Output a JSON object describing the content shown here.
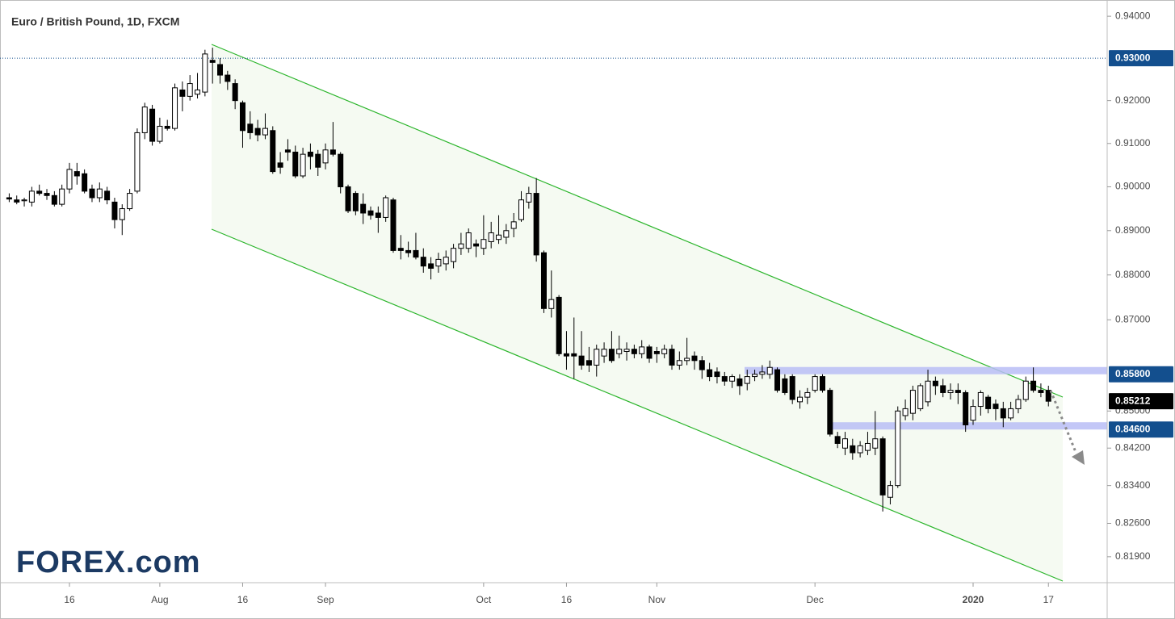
{
  "chart_data": {
    "type": "candlestick",
    "title": "Euro / British Pound, 1D, FXCM",
    "logo": "FOREX.com",
    "log": true,
    "up_color": "#ffffff",
    "down_color": "#000000",
    "categories": [
      null,
      null,
      null,
      null,
      null,
      null,
      null,
      null,
      "16",
      null,
      null,
      null,
      null,
      null,
      null,
      null,
      null,
      null,
      null,
      null,
      "Aug",
      null,
      null,
      null,
      null,
      null,
      null,
      null,
      null,
      null,
      null,
      "16",
      null,
      null,
      null,
      null,
      null,
      null,
      null,
      null,
      null,
      null,
      "Sep",
      null,
      null,
      null,
      null,
      null,
      null,
      null,
      null,
      null,
      null,
      null,
      null,
      null,
      null,
      null,
      null,
      null,
      null,
      null,
      null,
      "Oct",
      null,
      null,
      null,
      null,
      null,
      null,
      null,
      null,
      null,
      null,
      "16",
      null,
      null,
      null,
      null,
      null,
      null,
      null,
      null,
      null,
      null,
      null,
      "Nov",
      null,
      null,
      null,
      null,
      null,
      null,
      null,
      null,
      null,
      null,
      null,
      null,
      null,
      null,
      null,
      null,
      null,
      null,
      null,
      null,
      "Dec",
      null,
      null,
      null,
      null,
      null,
      null,
      null,
      null,
      null,
      null,
      null,
      null,
      null,
      null,
      null,
      null,
      null,
      null,
      null,
      null,
      "2020",
      null,
      null,
      null,
      null,
      null,
      null,
      null,
      null,
      null,
      "17"
    ],
    "open": [
      0.8975,
      0.897,
      0.8968,
      0.8965,
      0.899,
      0.8985,
      0.898,
      0.896,
      0.8995,
      0.9035,
      0.903,
      0.8995,
      0.8975,
      0.899,
      0.8965,
      0.8925,
      0.895,
      0.899,
      0.9125,
      0.918,
      0.9105,
      0.914,
      0.9135,
      0.9225,
      0.921,
      0.9215,
      0.922,
      0.9295,
      0.9285,
      0.926,
      0.924,
      0.9195,
      0.9145,
      0.9135,
      0.912,
      0.913,
      0.9055,
      0.9085,
      0.908,
      0.9025,
      0.908,
      0.9075,
      0.9055,
      0.9085,
      0.9075,
      0.9,
      0.8985,
      0.896,
      0.8945,
      0.894,
      0.893,
      0.897,
      0.886,
      0.8855,
      0.8855,
      0.884,
      0.8825,
      0.882,
      0.8825,
      0.883,
      0.886,
      0.886,
      0.887,
      0.886,
      0.8875,
      0.888,
      0.8885,
      0.8905,
      0.8925,
      0.8965,
      0.8985,
      0.885,
      0.8725,
      0.875,
      0.8625,
      0.8625,
      0.862,
      0.861,
      0.86,
      0.862,
      0.8635,
      0.8625,
      0.863,
      0.8635,
      0.8625,
      0.864,
      0.863,
      0.8625,
      0.8635,
      0.86,
      0.861,
      0.862,
      0.861,
      0.859,
      0.8585,
      0.8575,
      0.8565,
      0.857,
      0.856,
      0.8575,
      0.858,
      0.858,
      0.859,
      0.857,
      0.8575,
      0.852,
      0.853,
      0.8545,
      0.8575,
      0.8545,
      0.8445,
      0.842,
      0.8425,
      0.841,
      0.8415,
      0.842,
      0.844,
      0.8315,
      0.834,
      0.849,
      0.8495,
      0.8505,
      0.852,
      0.8565,
      0.8555,
      0.854,
      0.8545,
      0.854,
      0.848,
      0.851,
      0.853,
      0.8515,
      0.8505,
      0.8485,
      0.8505,
      0.8525,
      0.8565,
      0.8545,
      0.8545
    ],
    "high": [
      0.8985,
      0.898,
      0.8975,
      0.9,
      0.9005,
      0.8995,
      0.899,
      0.9005,
      0.9055,
      0.9055,
      0.904,
      0.9005,
      0.901,
      0.9,
      0.8975,
      0.896,
      0.8995,
      0.9135,
      0.9195,
      0.919,
      0.916,
      0.9155,
      0.924,
      0.9245,
      0.926,
      0.9265,
      0.932,
      0.9325,
      0.93,
      0.927,
      0.925,
      0.92,
      0.9175,
      0.9155,
      0.917,
      0.914,
      0.908,
      0.911,
      0.9095,
      0.909,
      0.91,
      0.9085,
      0.91,
      0.915,
      0.908,
      0.9005,
      0.899,
      0.8985,
      0.8955,
      0.8955,
      0.898,
      0.8975,
      0.889,
      0.8875,
      0.8895,
      0.886,
      0.884,
      0.885,
      0.8855,
      0.887,
      0.8895,
      0.8905,
      0.888,
      0.8935,
      0.892,
      0.8935,
      0.8915,
      0.894,
      0.899,
      0.9,
      0.902,
      0.8855,
      0.881,
      0.8755,
      0.8675,
      0.8705,
      0.8675,
      0.864,
      0.8645,
      0.865,
      0.8675,
      0.8665,
      0.865,
      0.8645,
      0.8655,
      0.8645,
      0.864,
      0.8645,
      0.8645,
      0.863,
      0.866,
      0.863,
      0.862,
      0.8605,
      0.8595,
      0.8585,
      0.858,
      0.858,
      0.859,
      0.859,
      0.86,
      0.861,
      0.8595,
      0.858,
      0.858,
      0.8545,
      0.855,
      0.858,
      0.858,
      0.855,
      0.8455,
      0.8455,
      0.844,
      0.8435,
      0.8455,
      0.85,
      0.8445,
      0.835,
      0.851,
      0.8525,
      0.8555,
      0.856,
      0.859,
      0.8575,
      0.857,
      0.856,
      0.856,
      0.8545,
      0.8525,
      0.8545,
      0.8535,
      0.8525,
      0.852,
      0.852,
      0.8535,
      0.8575,
      0.8595,
      0.856,
      0.8555
    ],
    "low": [
      0.8965,
      0.896,
      0.8955,
      0.8955,
      0.898,
      0.897,
      0.8955,
      0.8955,
      0.8985,
      0.9005,
      0.8985,
      0.8965,
      0.8965,
      0.896,
      0.8905,
      0.889,
      0.8945,
      0.8985,
      0.911,
      0.9095,
      0.91,
      0.913,
      0.913,
      0.9175,
      0.92,
      0.9205,
      0.921,
      0.924,
      0.924,
      0.9225,
      0.918,
      0.909,
      0.911,
      0.9105,
      0.911,
      0.903,
      0.903,
      0.906,
      0.902,
      0.902,
      0.904,
      0.9025,
      0.904,
      0.907,
      0.8985,
      0.894,
      0.8935,
      0.8915,
      0.8925,
      0.8895,
      0.892,
      0.885,
      0.8835,
      0.884,
      0.8835,
      0.8805,
      0.879,
      0.8805,
      0.881,
      0.8815,
      0.8845,
      0.885,
      0.884,
      0.8845,
      0.886,
      0.887,
      0.887,
      0.8885,
      0.892,
      0.895,
      0.883,
      0.8715,
      0.8705,
      0.862,
      0.859,
      0.857,
      0.859,
      0.8585,
      0.8575,
      0.8605,
      0.8605,
      0.8615,
      0.861,
      0.8615,
      0.8615,
      0.8605,
      0.8605,
      0.8615,
      0.859,
      0.859,
      0.86,
      0.859,
      0.857,
      0.8565,
      0.856,
      0.8555,
      0.855,
      0.8535,
      0.8545,
      0.8565,
      0.857,
      0.857,
      0.854,
      0.8535,
      0.8515,
      0.8505,
      0.8515,
      0.854,
      0.854,
      0.8445,
      0.842,
      0.8405,
      0.8395,
      0.84,
      0.8405,
      0.8405,
      0.8285,
      0.83,
      0.8335,
      0.848,
      0.848,
      0.85,
      0.851,
      0.8535,
      0.853,
      0.8525,
      0.8515,
      0.8455,
      0.847,
      0.849,
      0.8495,
      0.848,
      0.8465,
      0.848,
      0.8495,
      0.852,
      0.854,
      0.853,
      0.851
    ],
    "close": [
      0.8972,
      0.8965,
      0.897,
      0.899,
      0.8985,
      0.898,
      0.896,
      0.8995,
      0.904,
      0.9025,
      0.899,
      0.8975,
      0.8995,
      0.897,
      0.8925,
      0.895,
      0.8985,
      0.9125,
      0.9185,
      0.9105,
      0.914,
      0.9135,
      0.923,
      0.921,
      0.924,
      0.9225,
      0.931,
      0.929,
      0.926,
      0.9245,
      0.92,
      0.913,
      0.9125,
      0.912,
      0.9135,
      0.9035,
      0.9045,
      0.908,
      0.9025,
      0.9075,
      0.907,
      0.9045,
      0.9085,
      0.9075,
      0.9,
      0.8945,
      0.8945,
      0.894,
      0.8935,
      0.893,
      0.8975,
      0.8855,
      0.8855,
      0.885,
      0.884,
      0.882,
      0.8815,
      0.8835,
      0.884,
      0.886,
      0.887,
      0.8895,
      0.8865,
      0.888,
      0.8895,
      0.889,
      0.89,
      0.892,
      0.897,
      0.8985,
      0.8845,
      0.8725,
      0.8745,
      0.8625,
      0.862,
      0.862,
      0.86,
      0.86,
      0.8635,
      0.8635,
      0.861,
      0.8635,
      0.8635,
      0.8625,
      0.864,
      0.8615,
      0.8625,
      0.8635,
      0.86,
      0.861,
      0.8615,
      0.861,
      0.859,
      0.8575,
      0.8575,
      0.8565,
      0.8575,
      0.8555,
      0.8575,
      0.858,
      0.8585,
      0.8595,
      0.8545,
      0.854,
      0.8525,
      0.853,
      0.854,
      0.8575,
      0.8545,
      0.845,
      0.843,
      0.844,
      0.841,
      0.8425,
      0.843,
      0.844,
      0.832,
      0.834,
      0.85,
      0.8505,
      0.8545,
      0.8555,
      0.8565,
      0.8555,
      0.854,
      0.8545,
      0.854,
      0.847,
      0.851,
      0.854,
      0.8505,
      0.8505,
      0.8485,
      0.8505,
      0.8525,
      0.8565,
      0.8545,
      0.854,
      0.85212
    ],
    "ylim": [
      0.8136,
      0.9439
    ],
    "yticks": [
      {
        "value": 0.94,
        "label": "0.94000"
      },
      {
        "value": 0.92,
        "label": "0.92000"
      },
      {
        "value": 0.91,
        "label": "0.91000"
      },
      {
        "value": 0.9,
        "label": "0.90000"
      },
      {
        "value": 0.89,
        "label": "0.89000"
      },
      {
        "value": 0.88,
        "label": "0.88000"
      },
      {
        "value": 0.87,
        "label": "0.87000"
      },
      {
        "value": 0.85,
        "label": "0.85000"
      },
      {
        "value": 0.842,
        "label": "0.84200"
      },
      {
        "value": 0.834,
        "label": "0.83400"
      },
      {
        "value": 0.826,
        "label": "0.82600"
      },
      {
        "value": 0.819,
        "label": "0.81900"
      }
    ],
    "price_labels": [
      {
        "value": 0.93,
        "label": "0.93000",
        "color": "#134f8e",
        "style": "dotted"
      },
      {
        "value": 0.858,
        "label": "0.85800",
        "color": "#134f8e",
        "style": "zone"
      },
      {
        "value": 0.846,
        "label": "0.84600",
        "color": "#134f8e",
        "style": "zone"
      },
      {
        "value": 0.85212,
        "label": "0.85212",
        "color": "#000000",
        "style": "price"
      }
    ]
  }
}
